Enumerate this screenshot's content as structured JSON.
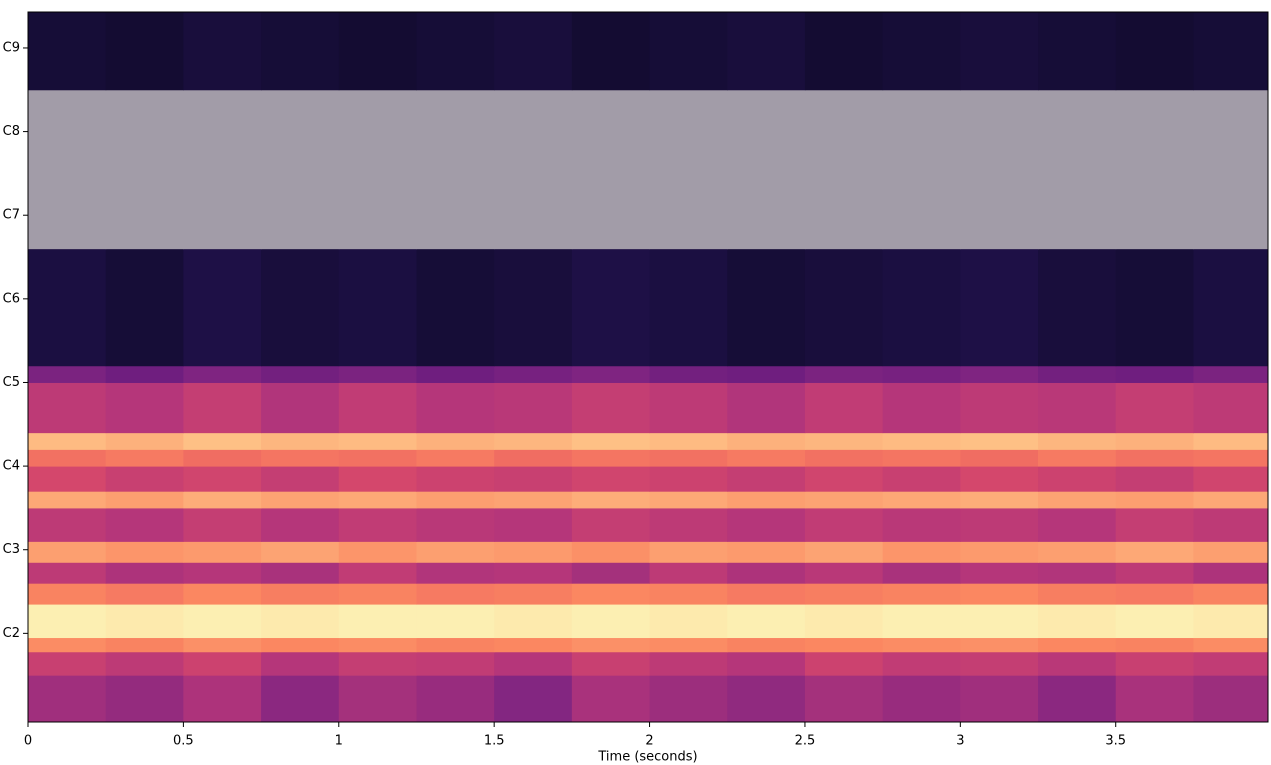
{
  "chart_data": {
    "type": "heatmap",
    "xlabel": "Time (seconds)",
    "xlim": [
      0,
      3.99
    ],
    "xticks": [
      0,
      0.5,
      1,
      1.5,
      2,
      2.5,
      3,
      3.5
    ],
    "ylim": [
      0.94,
      9.43
    ],
    "yticks": [
      {
        "value": 2,
        "label": "C2"
      },
      {
        "value": 3,
        "label": "C3"
      },
      {
        "value": 4,
        "label": "C4"
      },
      {
        "value": 5,
        "label": "C5"
      },
      {
        "value": 6,
        "label": "C6"
      },
      {
        "value": 7,
        "label": "C7"
      },
      {
        "value": 8,
        "label": "C8"
      },
      {
        "value": 9,
        "label": "C9"
      }
    ],
    "colormap": "magma",
    "bad_color": "#a29ca8",
    "x_edges": [
      0,
      0.25,
      0.5,
      0.75,
      1,
      1.25,
      1.5,
      1.75,
      2,
      2.25,
      2.5,
      2.75,
      3,
      3.25,
      3.5,
      3.75,
      3.99
    ],
    "y_edges": [
      0.94,
      1.5,
      1.78,
      1.95,
      2.35,
      2.6,
      2.85,
      3.1,
      3.5,
      3.7,
      4.0,
      4.2,
      4.4,
      5.0,
      5.2,
      6.6,
      8.5,
      9.43
    ],
    "z": [
      [
        0.45,
        0.42,
        0.48,
        0.4,
        0.46,
        0.43,
        0.38,
        0.47,
        0.44,
        0.41,
        0.46,
        0.43,
        0.45,
        0.4,
        0.47,
        0.44
      ],
      [
        0.55,
        0.52,
        0.56,
        0.5,
        0.54,
        0.53,
        0.5,
        0.55,
        0.52,
        0.5,
        0.56,
        0.53,
        0.54,
        0.51,
        0.55,
        0.53
      ],
      [
        0.76,
        0.74,
        0.77,
        0.75,
        0.76,
        0.74,
        0.75,
        0.77,
        0.76,
        0.74,
        0.75,
        0.76,
        0.77,
        0.75,
        0.74,
        0.76
      ],
      [
        0.97,
        0.96,
        0.97,
        0.96,
        0.97,
        0.97,
        0.96,
        0.97,
        0.96,
        0.97,
        0.96,
        0.97,
        0.97,
        0.96,
        0.97,
        0.96
      ],
      [
        0.74,
        0.72,
        0.75,
        0.73,
        0.74,
        0.72,
        0.73,
        0.75,
        0.74,
        0.72,
        0.73,
        0.74,
        0.75,
        0.73,
        0.72,
        0.74
      ],
      [
        0.52,
        0.48,
        0.5,
        0.47,
        0.53,
        0.49,
        0.5,
        0.46,
        0.52,
        0.48,
        0.51,
        0.47,
        0.5,
        0.49,
        0.52,
        0.48
      ],
      [
        0.8,
        0.78,
        0.79,
        0.81,
        0.78,
        0.8,
        0.79,
        0.77,
        0.8,
        0.79,
        0.81,
        0.78,
        0.79,
        0.8,
        0.82,
        0.8
      ],
      [
        0.52,
        0.5,
        0.54,
        0.5,
        0.53,
        0.51,
        0.5,
        0.54,
        0.52,
        0.5,
        0.53,
        0.51,
        0.52,
        0.5,
        0.54,
        0.52
      ],
      [
        0.82,
        0.8,
        0.83,
        0.81,
        0.82,
        0.8,
        0.81,
        0.83,
        0.82,
        0.8,
        0.81,
        0.82,
        0.83,
        0.81,
        0.8,
        0.82
      ],
      [
        0.58,
        0.55,
        0.57,
        0.54,
        0.58,
        0.56,
        0.55,
        0.57,
        0.56,
        0.54,
        0.57,
        0.55,
        0.58,
        0.56,
        0.54,
        0.57
      ],
      [
        0.7,
        0.72,
        0.69,
        0.71,
        0.7,
        0.72,
        0.69,
        0.71,
        0.7,
        0.72,
        0.7,
        0.71,
        0.69,
        0.72,
        0.7,
        0.71
      ],
      [
        0.86,
        0.84,
        0.87,
        0.85,
        0.86,
        0.84,
        0.85,
        0.87,
        0.86,
        0.84,
        0.85,
        0.86,
        0.87,
        0.85,
        0.84,
        0.86
      ],
      [
        0.52,
        0.5,
        0.54,
        0.49,
        0.53,
        0.5,
        0.51,
        0.54,
        0.52,
        0.49,
        0.53,
        0.5,
        0.52,
        0.51,
        0.54,
        0.52
      ],
      [
        0.36,
        0.33,
        0.37,
        0.34,
        0.36,
        0.33,
        0.35,
        0.37,
        0.34,
        0.33,
        0.36,
        0.35,
        0.37,
        0.34,
        0.33,
        0.36
      ],
      [
        0.12,
        0.1,
        0.13,
        0.11,
        0.12,
        0.1,
        0.11,
        0.13,
        0.12,
        0.1,
        0.11,
        0.12,
        0.13,
        0.11,
        0.1,
        0.12
      ],
      [
        null,
        null,
        null,
        null,
        null,
        null,
        null,
        null,
        null,
        null,
        null,
        null,
        null,
        null,
        null,
        null
      ],
      [
        0.1,
        0.09,
        0.11,
        0.1,
        0.09,
        0.1,
        0.11,
        0.09,
        0.1,
        0.11,
        0.09,
        0.1,
        0.11,
        0.1,
        0.09,
        0.1
      ]
    ]
  }
}
